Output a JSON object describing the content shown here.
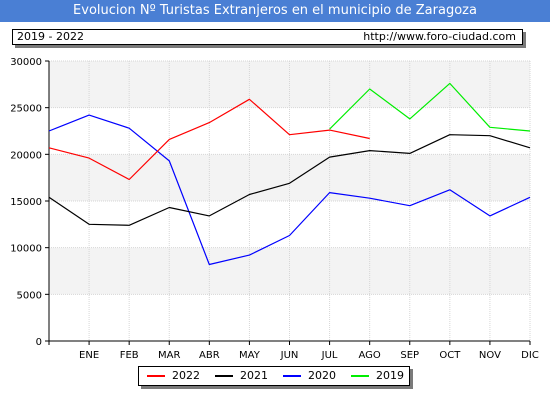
{
  "header": {
    "title": "Evolucion Nº Turistas Extranjeros en el municipio de Zaragoza",
    "period": "2019 - 2022",
    "url": "http://www.foro-ciudad.com"
  },
  "colors": {
    "title_bar": "#4a7fd4",
    "band": "#f3f3f3",
    "grid": "#d6d6d6"
  },
  "chart_data": {
    "type": "line",
    "categories": [
      "",
      "ENE",
      "FEB",
      "MAR",
      "ABR",
      "MAY",
      "JUN",
      "JUL",
      "AGO",
      "SEP",
      "OCT",
      "NOV",
      "DIC"
    ],
    "ylim": [
      0,
      30000
    ],
    "yticks": [
      0,
      5000,
      10000,
      15000,
      20000,
      25000,
      30000
    ],
    "grid": true,
    "legend_position": "bottom",
    "series": [
      {
        "name": "2022",
        "color": "#ff0000",
        "values": [
          20700,
          19600,
          17300,
          21600,
          23400,
          25900,
          22100,
          22600,
          21700,
          null,
          null,
          null,
          null
        ]
      },
      {
        "name": "2021",
        "color": "#000000",
        "values": [
          15400,
          12500,
          12400,
          14300,
          13400,
          15700,
          16900,
          19700,
          20400,
          20100,
          22100,
          22000,
          20700
        ]
      },
      {
        "name": "2020",
        "color": "#0000ff",
        "values": [
          22500,
          24200,
          22800,
          19300,
          8200,
          9200,
          11300,
          15900,
          15300,
          14500,
          16200,
          13400,
          15400
        ]
      },
      {
        "name": "2019",
        "color": "#00ee00",
        "values": [
          null,
          null,
          null,
          null,
          null,
          null,
          null,
          22700,
          27000,
          23800,
          27600,
          22900,
          22500
        ]
      }
    ]
  }
}
